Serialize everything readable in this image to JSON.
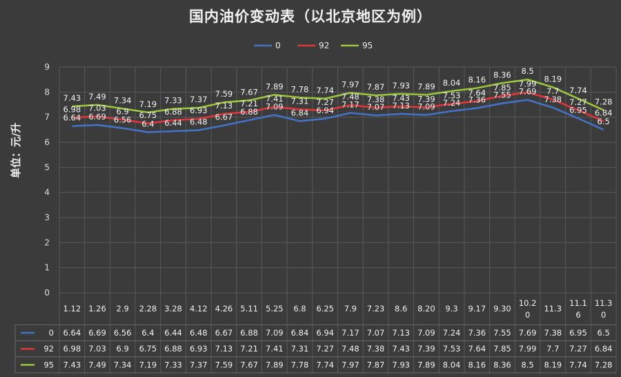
{
  "chart_data": {
    "type": "line",
    "title": "国内油价变动表（以北京地区为例）",
    "ylabel": "单位：元/升",
    "ylim": [
      0,
      9
    ],
    "yticks": [
      0,
      1,
      2,
      3,
      4,
      5,
      6,
      7,
      8,
      9
    ],
    "categories": [
      "1.12",
      "1.26",
      "2.9",
      "2.28",
      "3.28",
      "4.12",
      "4.26",
      "5.11",
      "5.25",
      "6.8",
      "6.25",
      "7.9",
      "7.23",
      "8.6",
      "8.20",
      "9.3",
      "9.17",
      "9.30",
      "10.20",
      "11.3",
      "11.16",
      "11.30"
    ],
    "series": [
      {
        "name": "0",
        "color": "#4472c4",
        "values": [
          6.64,
          6.69,
          6.56,
          6.4,
          6.44,
          6.48,
          6.67,
          6.88,
          7.09,
          6.84,
          6.94,
          7.17,
          7.07,
          7.13,
          7.09,
          7.24,
          7.36,
          7.55,
          7.69,
          7.38,
          6.95,
          6.5
        ]
      },
      {
        "name": "92",
        "color": "#e0353a",
        "values": [
          6.98,
          7.03,
          6.9,
          6.75,
          6.88,
          6.93,
          7.13,
          7.21,
          7.41,
          7.31,
          7.27,
          7.48,
          7.38,
          7.43,
          7.39,
          7.53,
          7.64,
          7.85,
          7.99,
          7.7,
          7.27,
          6.84
        ]
      },
      {
        "name": "95",
        "color": "#9bc53d",
        "values": [
          7.43,
          7.49,
          7.34,
          7.19,
          7.33,
          7.37,
          7.59,
          7.67,
          7.89,
          7.78,
          7.74,
          7.97,
          7.87,
          7.93,
          7.89,
          8.04,
          8.16,
          8.36,
          8.5,
          8.19,
          7.74,
          7.28
        ]
      }
    ],
    "legend": "top-center",
    "grid": true,
    "data_table": true
  }
}
